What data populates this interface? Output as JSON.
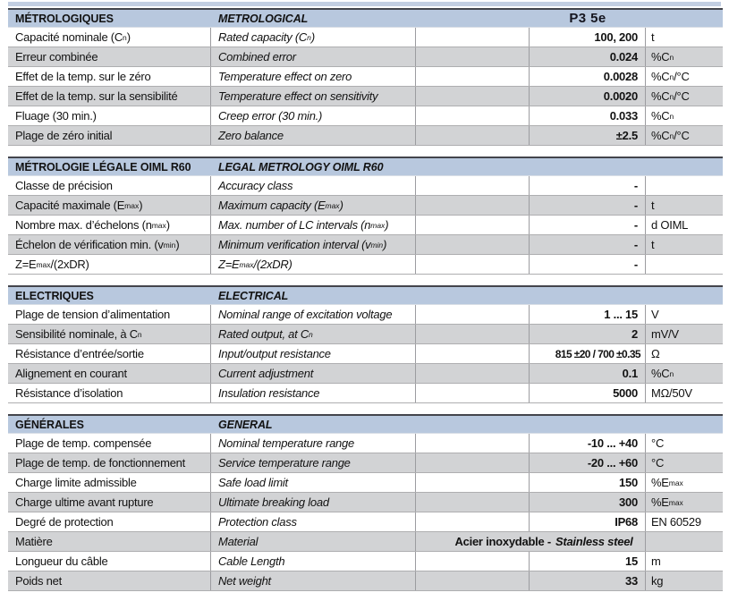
{
  "colors": {
    "header_bg": "#b8c8de",
    "row_alt_bg": "#d2d3d5",
    "border_dark": "#43454c",
    "top_strip": "#c3cfe2"
  },
  "table": {
    "model": "P3 5e",
    "sections": [
      {
        "title_fr": "MÉTROLOGIQUES",
        "title_en": "METROLOGICAL",
        "show_model": true,
        "rows": [
          {
            "fr": "Capacité nominale (C_{n})",
            "en": "Rated capacity (C_{n})",
            "value": "100, 200",
            "unit": "t"
          },
          {
            "fr": "Erreur combinée",
            "en": "Combined error",
            "value": "0.024",
            "unit": "%C_{n}"
          },
          {
            "fr": "Effet de la temp. sur le zéro",
            "en": "Temperature effect on zero",
            "value": "0.0028",
            "unit": "%C_{n}/°C"
          },
          {
            "fr": "Effet de la temp. sur la sensibilité",
            "en": "Temperature effect on sensitivity",
            "value": "0.0020",
            "unit": "%C_{n}/°C"
          },
          {
            "fr": "Fluage (30 min.)",
            "en": "Creep error (30 min.)",
            "value": "0.033",
            "unit": "%C_{n}"
          },
          {
            "fr": "Plage de zéro initial",
            "en": "Zero balance",
            "value": "±2.5",
            "unit": "%C_{n}/°C"
          }
        ]
      },
      {
        "title_fr": "MÉTROLOGIE LÉGALE OIML R60",
        "title_en": "LEGAL METROLOGY OIML R60",
        "show_model": false,
        "rows": [
          {
            "fr": "Classe de précision",
            "en": "Accuracy class",
            "value": "-",
            "unit": ""
          },
          {
            "fr": "Capacité maximale (E_{max})",
            "en": "Maximum capacity (E_{max})",
            "value": "-",
            "unit": "t"
          },
          {
            "fr": "Nombre max. d’échelons (n_{max})",
            "en": "Max. number of LC intervals (n_{max})",
            "value": "-",
            "unit": "d OIML"
          },
          {
            "fr": "Échelon de vérification min. (v_{min})",
            "en": "Minimum verification interval (v_{min})",
            "value": "-",
            "unit": "t"
          },
          {
            "fr": "Z=E_{max}/(2xDR)",
            "en": "Z=E_{max}/(2xDR)",
            "value": "-",
            "unit": ""
          }
        ]
      },
      {
        "title_fr": "ELECTRIQUES",
        "title_en": "ELECTRICAL",
        "show_model": false,
        "rows": [
          {
            "fr": "Plage de tension d’alimentation",
            "en": "Nominal range of excitation voltage",
            "value": "1 ... 15",
            "unit": "V"
          },
          {
            "fr": "Sensibilité nominale, à C_{n}",
            "en": "Rated output, at C_{n}",
            "value": "2",
            "unit": "mV/V"
          },
          {
            "fr": "Résistance d’entrée/sortie",
            "en": "Input/output resistance",
            "value": "815 ±20 / 700 ±0.35",
            "unit": "Ω"
          },
          {
            "fr": "Alignement en courant",
            "en": "Current adjustment",
            "value": "0.1",
            "unit": "%C_{n}"
          },
          {
            "fr": "Résistance d’isolation",
            "en": "Insulation resistance",
            "value": "5000",
            "unit": "MΩ/50V"
          }
        ]
      },
      {
        "title_fr": "GÉNÉRALES",
        "title_en": "GENERAL",
        "show_model": false,
        "rows": [
          {
            "fr": "Plage de temp. compensée",
            "en": "Nominal temperature range",
            "value": "-10 ... +40",
            "unit": "°C"
          },
          {
            "fr": "Plage de temp. de fonctionnement",
            "en": "Service temperature range",
            "value": "-20 ... +60",
            "unit": "°C"
          },
          {
            "fr": "Charge limite admissible",
            "en": "Safe load limit",
            "value": "150",
            "unit": "%E_{max}"
          },
          {
            "fr": "Charge ultime avant rupture",
            "en": "Ultimate breaking load",
            "value": "300",
            "unit": "%E_{max}"
          },
          {
            "fr": "Degré de protection",
            "en": "Protection class",
            "value": "IP68",
            "unit": "EN 60529"
          },
          {
            "fr": "Matière",
            "en": "Material",
            "merged": true,
            "value_fr": "Acier inoxydable -",
            "value_en": "Stainless steel",
            "unit": ""
          },
          {
            "fr": "Longueur du câble",
            "en": "Cable Length",
            "value": "15",
            "unit": "m"
          },
          {
            "fr": "Poids net",
            "en": "Net weight",
            "value": "33",
            "unit": "kg"
          }
        ]
      }
    ]
  }
}
